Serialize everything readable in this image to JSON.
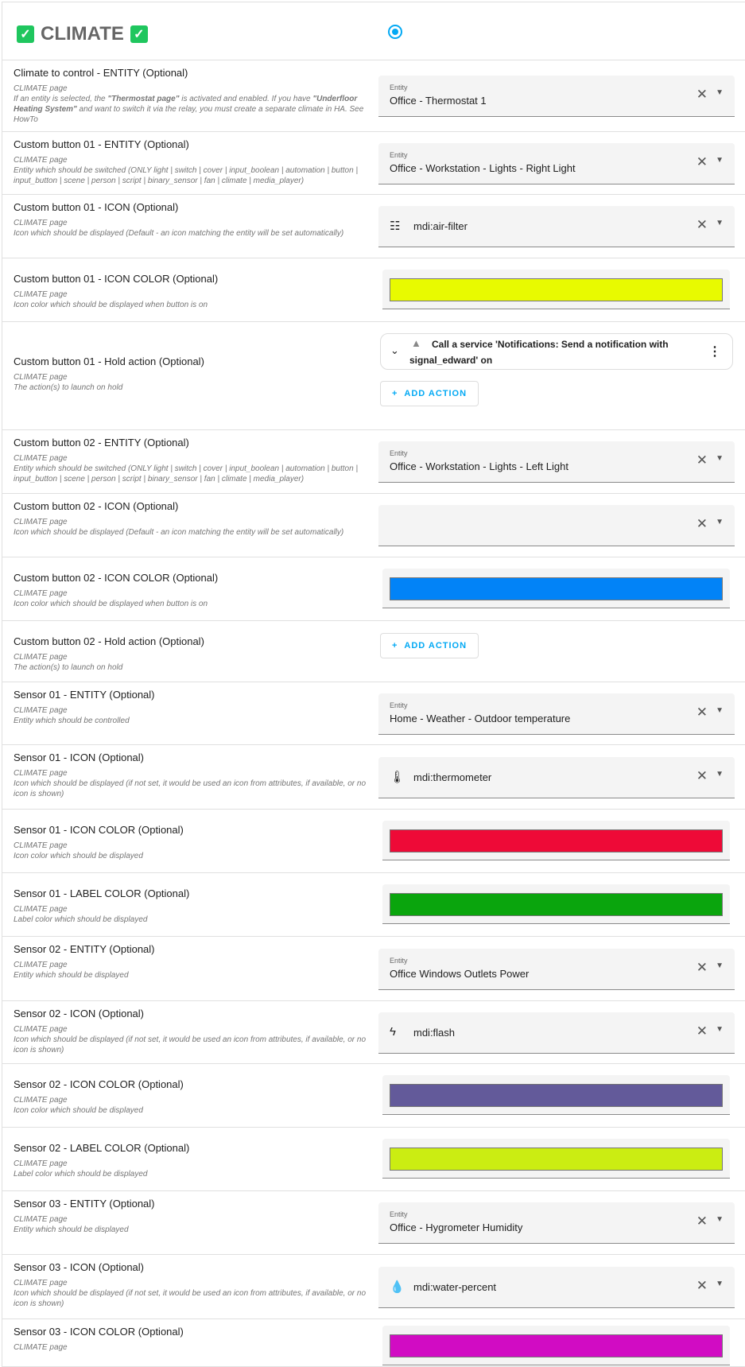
{
  "header": {
    "title": "CLIMATE",
    "check_icon": "check-box-icon",
    "radio_selected": true,
    "accent": "#03a9f4"
  },
  "rows": [
    {
      "type": "entity",
      "label": "Climate to control - ENTITY (Optional)",
      "page": "CLIMATE page",
      "desc_html": [
        "If an entity is selected, the ",
        "\"Thermostat page\"",
        " is activated and enabled. If you have ",
        "\"Underfloor Heating System\"",
        " and want to switch it via the relay, you must create a separate climate in HA. See HowTo"
      ],
      "field_label": "Entity",
      "value": "Office - Thermostat 1"
    },
    {
      "type": "entity",
      "label": "Custom button 01 - ENTITY (Optional)",
      "page": "CLIMATE page",
      "desc": "Entity which should be switched (ONLY light | switch | cover | input_boolean | automation | button | input_button | scene | person | script | binary_sensor | fan | climate | media_player)",
      "field_label": "Entity",
      "value": "Office - Workstation - Lights - Right Light"
    },
    {
      "type": "icon",
      "label": "Custom button 01 - ICON (Optional)",
      "page": "CLIMATE page",
      "desc": "Icon which should be displayed (Default - an icon matching the entity will be set automatically)",
      "icon": "air-filter-icon",
      "value": "mdi:air-filter"
    },
    {
      "type": "color",
      "label": "Custom button 01 - ICON COLOR (Optional)",
      "page": "CLIMATE page",
      "desc": "Icon color which should be displayed when button is on",
      "color": "#e8fa00"
    },
    {
      "type": "action",
      "label": "Custom button 01 - Hold action (Optional)",
      "page": "CLIMATE page",
      "desc": "The action(s) to launch on hold",
      "action_text": "Call a service 'Notifications: Send a notification with signal_edward' on",
      "add_label": "ADD ACTION"
    },
    {
      "type": "entity",
      "label": "Custom button 02 - ENTITY (Optional)",
      "page": "CLIMATE page",
      "desc": "Entity which should be switched (ONLY light | switch | cover | input_boolean | automation | button | input_button | scene | person | script | binary_sensor | fan | climate | media_player)",
      "field_label": "Entity",
      "value": "Office - Workstation - Lights - Left Light"
    },
    {
      "type": "icon",
      "label": "Custom button 02 - ICON (Optional)",
      "page": "CLIMATE page",
      "desc": "Icon which should be displayed (Default - an icon matching the entity will be set automatically)",
      "value": ""
    },
    {
      "type": "color",
      "label": "Custom button 02 - ICON COLOR (Optional)",
      "page": "CLIMATE page",
      "desc": "Icon color which should be displayed when button is on",
      "color": "#0283f7"
    },
    {
      "type": "add",
      "label": "Custom button 02 - Hold action (Optional)",
      "page": "CLIMATE page",
      "desc": "The action(s) to launch on hold",
      "add_label": "ADD ACTION"
    },
    {
      "type": "entity",
      "label": "Sensor 01 - ENTITY (Optional)",
      "page": "CLIMATE page",
      "desc": "Entity which should be controlled",
      "field_label": "Entity",
      "value": "Home - Weather - Outdoor temperature"
    },
    {
      "type": "icon",
      "label": "Sensor 01 - ICON (Optional)",
      "page": "CLIMATE page",
      "desc": "Icon which should be displayed (if not set, it would be used an icon from attributes, if available, or no icon is shown)",
      "icon": "thermometer-icon",
      "value": "mdi:thermometer"
    },
    {
      "type": "color",
      "label": "Sensor 01 - ICON COLOR (Optional)",
      "page": "CLIMATE page",
      "desc": "Icon color which should be displayed",
      "color": "#ee0a37"
    },
    {
      "type": "color",
      "label": "Sensor 01 - LABEL COLOR (Optional)",
      "page": "CLIMATE page",
      "desc": "Label color which should be displayed",
      "color": "#0aa50d"
    },
    {
      "type": "entity",
      "label": "Sensor 02 - ENTITY (Optional)",
      "page": "CLIMATE page",
      "desc": "Entity which should be displayed",
      "field_label": "Entity",
      "value": "Office Windows Outlets Power"
    },
    {
      "type": "icon",
      "label": "Sensor 02 - ICON (Optional)",
      "page": "CLIMATE page",
      "desc": "Icon which should be displayed (if not set, it would be used an icon from attributes, if available, or no icon is shown)",
      "icon": "flash-icon",
      "value": "mdi:flash"
    },
    {
      "type": "color",
      "label": "Sensor 02 - ICON COLOR (Optional)",
      "page": "CLIMATE page",
      "desc": "Icon color which should be displayed",
      "color": "#635a9a"
    },
    {
      "type": "color",
      "label": "Sensor 02 - LABEL COLOR (Optional)",
      "page": "CLIMATE page",
      "desc": "Label color which should be displayed",
      "color": "#cbed12"
    },
    {
      "type": "entity",
      "label": "Sensor 03 - ENTITY (Optional)",
      "page": "CLIMATE page",
      "desc": "Entity which should be displayed",
      "field_label": "Entity",
      "value": "Office - Hygrometer Humidity"
    },
    {
      "type": "icon",
      "label": "Sensor 03 - ICON (Optional)",
      "page": "CLIMATE page",
      "desc": "Icon which should be displayed (if not set, it would be used an icon from attributes, if available, or no icon is shown)",
      "icon": "water-percent-icon",
      "value": "mdi:water-percent"
    },
    {
      "type": "color",
      "label": "Sensor 03 - ICON COLOR (Optional)",
      "page": "CLIMATE page",
      "desc": "",
      "color": "#d10cc3"
    }
  ]
}
